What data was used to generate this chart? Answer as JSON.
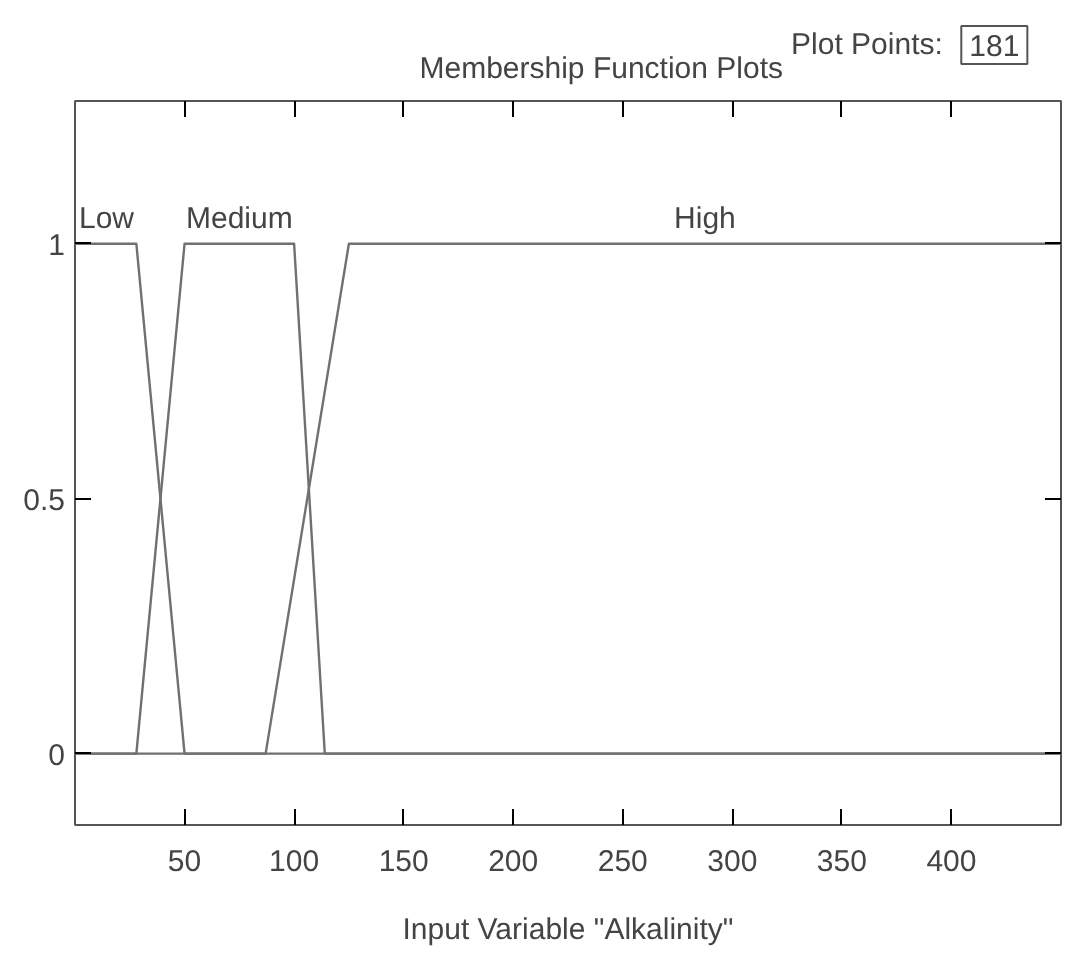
{
  "chart_data": {
    "type": "line",
    "title": "Membership Function Plots",
    "xlabel": "Input Variable \"Alkalinity\"",
    "annotations": [
      "Plot Points:",
      "181"
    ],
    "xlim": [
      0,
      450
    ],
    "ylim": [
      -0.14,
      1.28
    ],
    "xticks": [
      50,
      100,
      150,
      200,
      250,
      300,
      350,
      400
    ],
    "yticks": [
      0,
      0.5,
      1
    ],
    "grid": false,
    "marker": "none",
    "line_style": "solid",
    "series": [
      {
        "name": "Low",
        "color": "#707070",
        "x": [
          0,
          28,
          50,
          450
        ],
        "values": [
          1,
          1,
          0,
          0
        ]
      },
      {
        "name": "Medium",
        "color": "#707070",
        "x": [
          0,
          28,
          50,
          100,
          114,
          450
        ],
        "values": [
          0,
          0,
          1,
          1,
          0,
          0
        ]
      },
      {
        "name": "High",
        "color": "#707070",
        "x": [
          0,
          87,
          125,
          450
        ],
        "values": [
          0,
          0,
          1,
          1
        ]
      }
    ]
  }
}
